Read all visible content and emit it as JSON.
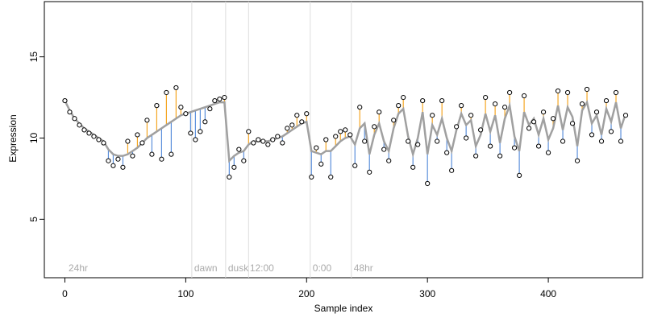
{
  "chart_data": {
    "type": "scatter",
    "xlabel": "Sample index",
    "ylabel": "Expression",
    "xlim": [
      -17,
      478
    ],
    "ylim": [
      1.4,
      18.4
    ],
    "xticks": [
      0,
      100,
      200,
      300,
      400
    ],
    "yticks": [
      5,
      10,
      15
    ],
    "vlines": [
      105,
      133,
      152,
      203,
      237
    ],
    "annotations": [
      {
        "x": 3,
        "label": "24hr"
      },
      {
        "x": 107,
        "label": "dawn"
      },
      {
        "x": 135,
        "label": "dusk"
      },
      {
        "x": 153,
        "label": "12:00"
      },
      {
        "x": 205,
        "label": "0:00"
      },
      {
        "x": 239,
        "label": "48hr"
      }
    ],
    "above_color": "#f5a623",
    "below_color": "#5b8fdb",
    "x": [
      0,
      4,
      8,
      12,
      16,
      20,
      24,
      28,
      32,
      36,
      40,
      44,
      48,
      52,
      56,
      60,
      64,
      68,
      72,
      76,
      80,
      84,
      88,
      92,
      96,
      100,
      104,
      108,
      112,
      116,
      120,
      124,
      128,
      132,
      136,
      140,
      144,
      148,
      152,
      156,
      160,
      164,
      168,
      172,
      176,
      180,
      184,
      188,
      192,
      196,
      200,
      204,
      208,
      212,
      216,
      220,
      224,
      228,
      232,
      236,
      240,
      244,
      248,
      252,
      256,
      260,
      264,
      268,
      272,
      276,
      280,
      284,
      288,
      292,
      296,
      300,
      304,
      308,
      312,
      316,
      320,
      324,
      328,
      332,
      336,
      340,
      344,
      348,
      352,
      356,
      360,
      364,
      368,
      372,
      376,
      380,
      384,
      388,
      392,
      396,
      400,
      404,
      408,
      412,
      416,
      420,
      424,
      428,
      432,
      436,
      440,
      444,
      448,
      452,
      456,
      460,
      464
    ],
    "series": [
      {
        "color": "#ffffff",
        "values": [
          12.3,
          11.6,
          11.2,
          10.8,
          10.5,
          10.3,
          10.1,
          9.9,
          9.7,
          8.6,
          8.3,
          8.7,
          8.2,
          9.8,
          8.9,
          10.2,
          9.7,
          11.1,
          9.0,
          12.0,
          8.7,
          12.8,
          9.0,
          13.1,
          11.9,
          11.5,
          10.3,
          9.9,
          10.4,
          11.0,
          11.8,
          12.3,
          12.4,
          12.5,
          7.6,
          8.2,
          9.3,
          8.6,
          10.4,
          9.7,
          9.9,
          9.8,
          9.6,
          9.9,
          10.1,
          9.7,
          10.6,
          10.8,
          11.4,
          11.0,
          11.5,
          7.6,
          9.4,
          8.4,
          9.9,
          7.6,
          10.1,
          10.4,
          10.5,
          10.2,
          8.3,
          11.9,
          9.8,
          7.9,
          10.7,
          11.6,
          9.3,
          8.6,
          11.1,
          12.0,
          12.5,
          9.8,
          8.2,
          9.6,
          12.3,
          7.2,
          11.4,
          9.8,
          12.3,
          9.1,
          8.0,
          10.7,
          12.0,
          10.0,
          11.4,
          8.9,
          10.5,
          12.5,
          9.5,
          12.1,
          8.9,
          11.9,
          12.8,
          9.4,
          7.7,
          12.6,
          10.6,
          11.0,
          9.5,
          11.6,
          9.1,
          11.2,
          12.9,
          9.8,
          12.8,
          10.9,
          8.6,
          12.1,
          13.0,
          10.2,
          11.6,
          9.8,
          12.3,
          10.4,
          12.8,
          9.8,
          11.4
        ]
      },
      {
        "color": "#a0a0a0",
        "values": [
          12.3,
          11.7,
          11.2,
          10.9,
          10.6,
          10.4,
          10.2,
          10.0,
          9.8,
          9.3,
          9.0,
          8.9,
          8.9,
          9.0,
          9.2,
          9.4,
          9.7,
          10.0,
          10.2,
          10.4,
          10.6,
          10.8,
          11.0,
          11.2,
          11.4,
          11.5,
          11.6,
          11.7,
          11.8,
          11.9,
          12.0,
          12.1,
          12.2,
          12.2,
          8.6,
          8.9,
          9.1,
          9.2,
          9.6,
          9.8,
          9.8,
          9.8,
          9.8,
          9.9,
          10.0,
          10.1,
          10.3,
          10.5,
          10.7,
          10.9,
          11.0,
          9.2,
          9.1,
          9.0,
          9.2,
          9.2,
          9.5,
          9.8,
          10.0,
          10.1,
          9.6,
          10.6,
          10.9,
          9.0,
          10.2,
          10.9,
          9.8,
          9.2,
          10.6,
          11.5,
          11.8,
          10.1,
          9.0,
          10.0,
          11.6,
          9.0,
          10.8,
          10.2,
          11.2,
          10.0,
          9.2,
          10.5,
          11.5,
          10.8,
          11.1,
          9.5,
          10.2,
          11.5,
          10.4,
          11.4,
          9.7,
          11.2,
          12.0,
          10.1,
          9.2,
          11.6,
          10.8,
          11.2,
          10.2,
          11.2,
          9.9,
          10.6,
          12.0,
          10.5,
          11.9,
          11.3,
          9.5,
          11.7,
          12.2,
          10.9,
          11.4,
          10.2,
          11.8,
          11.0,
          12.2,
          10.6,
          11.5
        ]
      }
    ]
  }
}
